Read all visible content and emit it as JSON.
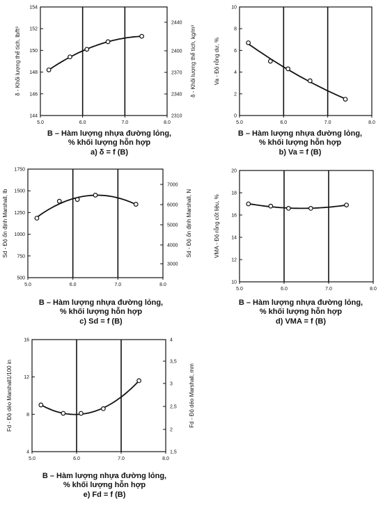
{
  "charts": [
    {
      "ylabel": "δ - Khối lượng thể tích, lb/ft³",
      "ylabel2": "δ - Khối lượng thể tích, kg/m³",
      "xticks": [
        "5.0",
        "6.0",
        "7.0",
        "8.0"
      ],
      "yticks": [
        "144",
        "146",
        "148",
        "150",
        "152",
        "154"
      ],
      "y2ticks": [
        "2310",
        "2340",
        "2370",
        "2400",
        "2440"
      ],
      "caption1": "B – Hàm lượng nhựa đường lỏng,",
      "caption2": "% khối lượng hỗn hợp",
      "caption3": "a) δ = f (B)"
    },
    {
      "ylabel": "Va - Độ rỗng dư, %",
      "ylabel2": "",
      "xticks": [
        "5.0",
        "6.0",
        "7.0",
        "8.0"
      ],
      "yticks": [
        "0",
        "2",
        "4",
        "6",
        "8",
        "10"
      ],
      "y2ticks": [],
      "caption1": "B – Hàm lượng nhựa đường lỏng,",
      "caption2": "% khối lượng hỗn hợp",
      "caption3": "b) Va = f (B)"
    },
    {
      "ylabel": "Sd - Độ ổn định Marshall, lb",
      "ylabel2": "Sd - Độ ổn định Marshall, N",
      "xticks": [
        "5.0",
        "6.0",
        "7.0",
        "8.0"
      ],
      "yticks": [
        "500",
        "750",
        "1000",
        "1250",
        "1500",
        "1750"
      ],
      "y2ticks": [
        "3000",
        "4000",
        "5000",
        "6000",
        "7000"
      ],
      "caption1": "B – Hàm lượng nhựa đường lỏng,",
      "caption2": "% khối lượng hỗn hợp",
      "caption3": "c) Sd = f (B)"
    },
    {
      "ylabel": "VMA - Độ rỗng cốt liệu, %",
      "ylabel2": "",
      "xticks": [
        "5.0",
        "6.0",
        "7.0",
        "8.0"
      ],
      "yticks": [
        "10",
        "12",
        "14",
        "16",
        "18",
        "20"
      ],
      "y2ticks": [],
      "caption1": "B – Hàm lượng nhựa đường lỏng,",
      "caption2": "% khối lượng hỗn hợp",
      "caption3": "d) VMA = f (B)"
    },
    {
      "ylabel": "Fd - Độ dẻo Marshall1/100 in",
      "ylabel2": "Fd - Độ dẻo Marshall, mm",
      "xticks": [
        "5.0",
        "6.0",
        "7.0",
        "8.0"
      ],
      "yticks": [
        "4",
        "8",
        "12",
        "16"
      ],
      "y2ticks": [
        "1,5",
        "2",
        "2,5",
        "3",
        "3,5",
        "4"
      ],
      "caption1": "B – Hàm lượng nhựa đường lỏng,",
      "caption2": "% khối lượng hỗn hợp",
      "caption3": "e) Fd = f (B)"
    }
  ],
  "chart_data": [
    {
      "type": "line",
      "x": [
        5.2,
        5.7,
        6.1,
        6.6,
        7.4
      ],
      "values": [
        148.2,
        149.4,
        150.1,
        150.8,
        151.3
      ],
      "ylabel": "δ - Khối lượng thể tích, lb/ft³",
      "xlabel": "B – Hàm lượng nhựa đường lỏng, % khối lượng hỗn hợp",
      "xlim": [
        5.0,
        8.0
      ],
      "ylim": [
        144,
        154
      ],
      "y2label": "δ - Khối lượng thể tích, kg/m³",
      "grid": "vertical lines at 6.0 and 7.0"
    },
    {
      "type": "line",
      "x": [
        5.2,
        5.7,
        6.1,
        6.6,
        7.4
      ],
      "values": [
        6.7,
        5.0,
        4.3,
        3.2,
        1.5
      ],
      "ylabel": "Va - Độ rỗng dư, %",
      "xlabel": "B – Hàm lượng nhựa đường lỏng, % khối lượng hỗn hợp",
      "xlim": [
        5.0,
        8.0
      ],
      "ylim": [
        0,
        10
      ],
      "grid": "vertical lines at 6.0 and 7.0"
    },
    {
      "type": "line",
      "x": [
        5.2,
        5.7,
        6.1,
        6.5,
        7.4
      ],
      "values": [
        1185,
        1380,
        1400,
        1450,
        1345
      ],
      "ylabel": "Sd - Độ ổn định Marshall, lb",
      "xlabel": "B – Hàm lượng nhựa đường lỏng, % khối lượng hỗn hợp",
      "xlim": [
        5.0,
        8.0
      ],
      "ylim": [
        500,
        1750
      ],
      "y2label": "Sd - Độ ổn định Marshall, N",
      "grid": "vertical lines at 6.0 and 7.0"
    },
    {
      "type": "line",
      "x": [
        5.2,
        5.7,
        6.1,
        6.6,
        7.4
      ],
      "values": [
        17.0,
        16.8,
        16.6,
        16.6,
        16.9
      ],
      "ylabel": "VMA - Độ rỗng cốt liệu, %",
      "xlabel": "B – Hàm lượng nhựa đường lỏng, % khối lượng hỗn hợp",
      "xlim": [
        5.0,
        8.0
      ],
      "ylim": [
        10,
        20
      ],
      "grid": "vertical lines at 6.0 and 7.0"
    },
    {
      "type": "line",
      "x": [
        5.2,
        5.7,
        6.1,
        6.6,
        7.4
      ],
      "values": [
        9.0,
        8.1,
        8.1,
        8.6,
        11.6
      ],
      "ylabel": "Fd - Độ dẻo Marshall1/100 in",
      "xlabel": "B – Hàm lượng nhựa đường lỏng, % khối lượng hỗn hợp",
      "xlim": [
        5.0,
        8.0
      ],
      "ylim": [
        4,
        16
      ],
      "y2label": "Fd - Độ dẻo Marshall, mm",
      "grid": "vertical lines at 6.0 and 7.0"
    }
  ]
}
